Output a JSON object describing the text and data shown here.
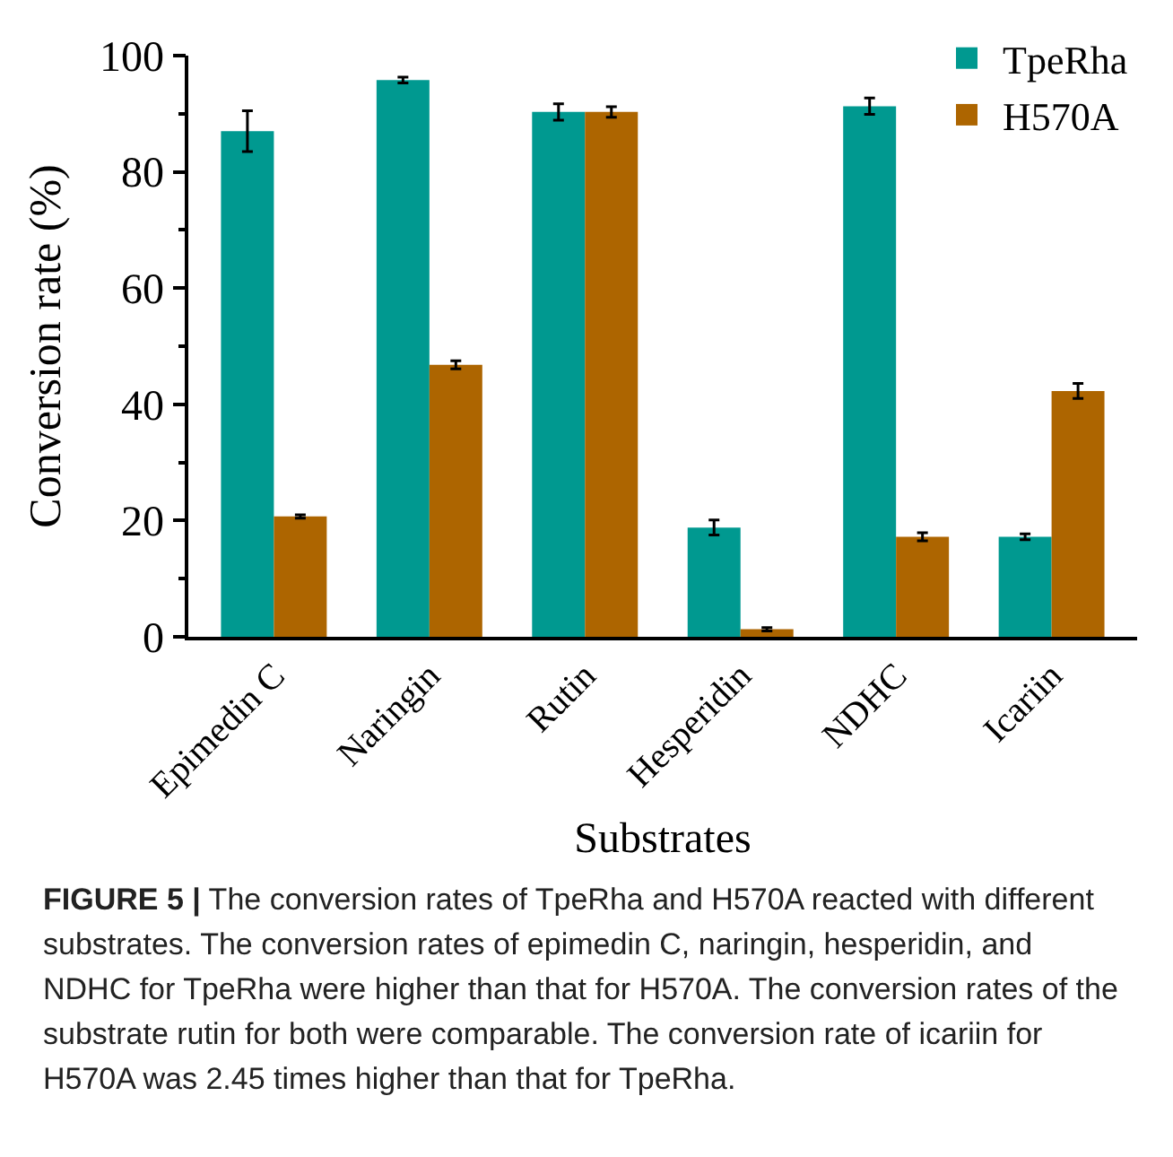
{
  "chart_data": {
    "type": "bar",
    "xlabel": "Substrates",
    "ylabel": "Conversion rate (%)",
    "categories": [
      "Epimedin C",
      "Naringin",
      "Rutin",
      "Hesperidin",
      "NDHC",
      "Icariin"
    ],
    "series": [
      {
        "name": "TpeRha",
        "color": "#009990",
        "values": [
          87.0,
          95.8,
          90.3,
          18.8,
          91.3,
          17.2
        ],
        "errors": [
          3.5,
          0.5,
          1.4,
          1.3,
          1.4,
          0.5
        ]
      },
      {
        "name": "H570A",
        "color": "#ad6500",
        "values": [
          20.7,
          46.8,
          90.3,
          1.3,
          17.2,
          42.3
        ],
        "errors": [
          0.3,
          0.7,
          0.9,
          0.3,
          0.7,
          1.3
        ]
      }
    ],
    "ylim": [
      0,
      100
    ],
    "yticks": [
      0,
      20,
      40,
      60,
      80,
      100
    ],
    "grid": false,
    "legend": "top right",
    "annotations": [
      "FIGURE 5 |",
      "The conversion rates of TpeRha and H570A reacted with different substrates. The conversion rates of epimedin C, naringin, hesperidin, and NDHC for TpeRha were higher than that for H570A. The conversion rates of the substrate rutin for both were comparable. The conversion rate of icariin for H570A was 2.45 times higher than that for TpeRha."
    ]
  }
}
